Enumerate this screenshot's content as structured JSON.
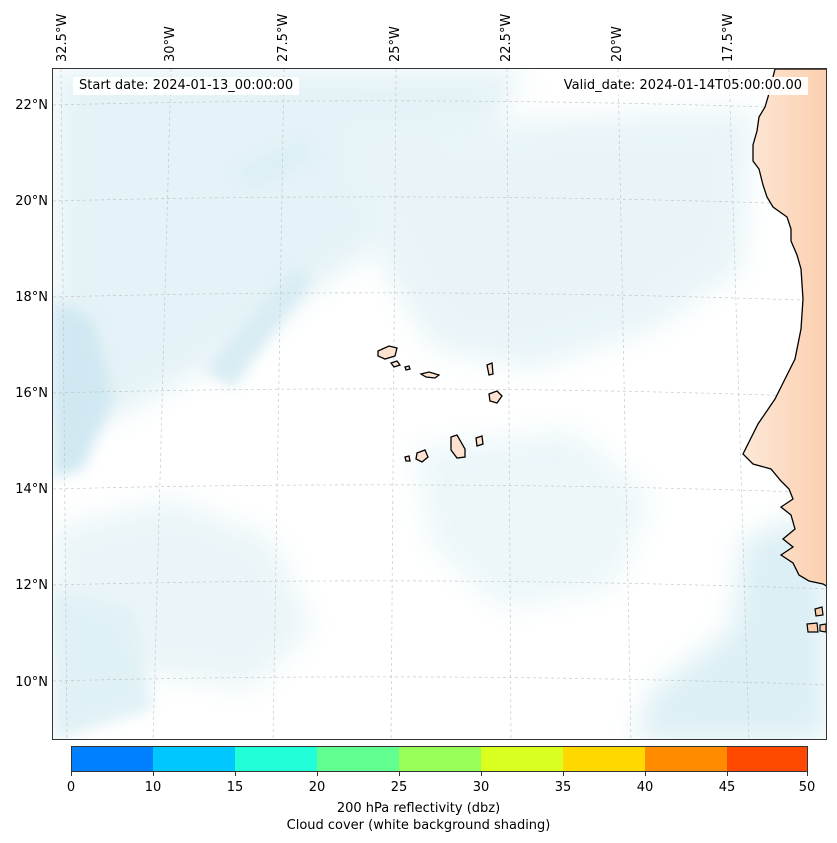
{
  "map": {
    "start_date": "Start date: 2024-01-13_00:00:00",
    "valid_date": "Valid_date: 2024-01-14T05:00:00.00",
    "lon_labels": [
      "32.5°W",
      "30°W",
      "27.5°W",
      "25°W",
      "22.5°W",
      "20°W",
      "17.5°W"
    ],
    "lat_labels": [
      "22°N",
      "20°N",
      "18°N",
      "16°N",
      "14°N",
      "12°N",
      "10°N"
    ],
    "land_color": "#fde3cf",
    "coast_color": "#000000",
    "cloud_color": "#add8e6"
  },
  "colorbar": {
    "ticks": [
      "0",
      "10",
      "15",
      "20",
      "25",
      "30",
      "35",
      "40",
      "45",
      "50"
    ],
    "colors": [
      "#0080ff",
      "#00c8ff",
      "#20ffd8",
      "#60ff90",
      "#98ff58",
      "#d8ff20",
      "#ffd800",
      "#ff8c00",
      "#ff4800"
    ],
    "label_line1": "200 hPa reflectivity (dbz)",
    "label_line2": "Cloud cover (white background shading)"
  }
}
